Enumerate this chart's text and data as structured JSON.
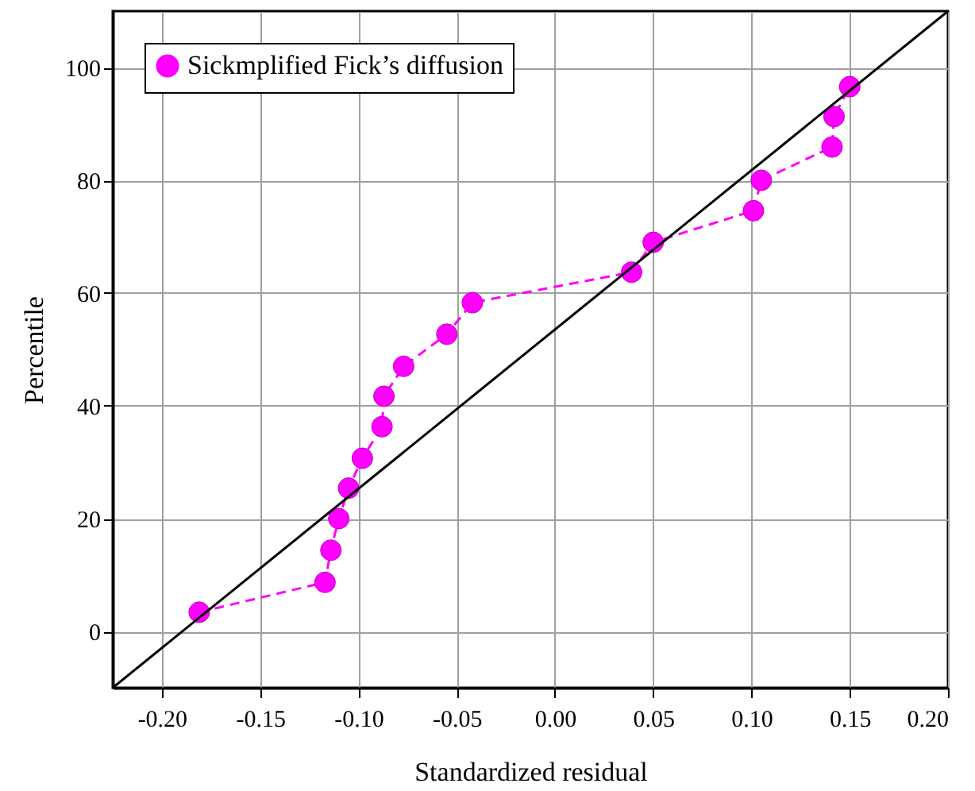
{
  "chart_data": {
    "type": "line",
    "xlabel": "Standardized residual",
    "ylabel": "Percentile",
    "xlim": [
      -0.225,
      0.2
    ],
    "ylim": [
      -10,
      110
    ],
    "xticks": [
      {
        "value": -0.2,
        "label": "-0.20"
      },
      {
        "value": -0.15,
        "label": "-0.15"
      },
      {
        "value": -0.1,
        "label": "-0.10"
      },
      {
        "value": -0.05,
        "label": "-0.05"
      },
      {
        "value": 0,
        "label": "0.00"
      },
      {
        "value": 0.05,
        "label": "0.05"
      },
      {
        "value": 0.1,
        "label": "0.10"
      },
      {
        "value": 0.15,
        "label": "0.15"
      },
      {
        "value": 0.2,
        "label": "0.20"
      }
    ],
    "yticks": [
      0,
      20,
      40,
      60,
      80,
      100
    ],
    "grid": true,
    "legend": "top left",
    "series": [
      {
        "name": "Sickmplified Fick’s diffusion",
        "color": "#ff00ff",
        "marker": "circle",
        "line_style": "dashed",
        "x": [
          -0.181,
          -0.117,
          -0.114,
          -0.11,
          -0.105,
          -0.098,
          -0.088,
          -0.087,
          -0.077,
          -0.055,
          -0.042,
          0.039,
          0.05,
          0.101,
          0.105,
          0.141,
          0.142,
          0.15
        ],
        "values": [
          3.4,
          8.7,
          14.4,
          20,
          25.4,
          30.7,
          36.3,
          41.7,
          47,
          52.7,
          58.3,
          63.7,
          69,
          74.6,
          80,
          85.9,
          91.3,
          96.6
        ]
      },
      {
        "color": "#000000",
        "marker": "none",
        "line_style": "solid",
        "x": [
          -0.225,
          0.2
        ],
        "values": [
          -10,
          110
        ]
      }
    ]
  }
}
